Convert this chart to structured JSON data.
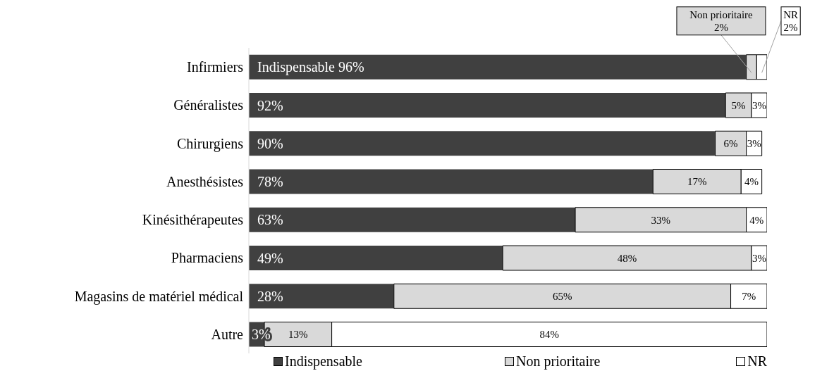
{
  "chart_data": {
    "type": "bar",
    "orientation": "horizontal",
    "stacked": true,
    "categories": [
      "Infirmiers",
      "Généralistes",
      "Chirurgiens",
      "Anesthésistes",
      "Kinésithérapeutes",
      "Pharmaciens",
      "Magasins de matériel médical",
      "Autre"
    ],
    "series": [
      {
        "name": "Indispensable",
        "color": "#404040",
        "values": [
          96,
          92,
          90,
          78,
          63,
          49,
          28,
          3
        ],
        "value_labels": [
          "Indispensable 96%",
          "92%",
          "90%",
          "78%",
          "63%",
          "49%",
          "28%",
          "3%"
        ]
      },
      {
        "name": "Non prioritaire",
        "color": "#d9d9d9",
        "values": [
          2,
          5,
          6,
          17,
          33,
          48,
          65,
          13
        ],
        "value_labels": [
          "Non prioritaire 2%",
          "5%",
          "6%",
          "17%",
          "33%",
          "48%",
          "65%",
          "13%"
        ]
      },
      {
        "name": "NR",
        "color": "#ffffff",
        "values": [
          2,
          3,
          3,
          4,
          4,
          3,
          7,
          84
        ],
        "value_labels": [
          "NR 2%",
          "3%",
          "3%",
          "4%",
          "4%",
          "3%",
          "7%",
          "84%"
        ]
      }
    ],
    "xlim": [
      0,
      100
    ],
    "tick_labels": "y",
    "grid": false,
    "legend": "bottom"
  }
}
